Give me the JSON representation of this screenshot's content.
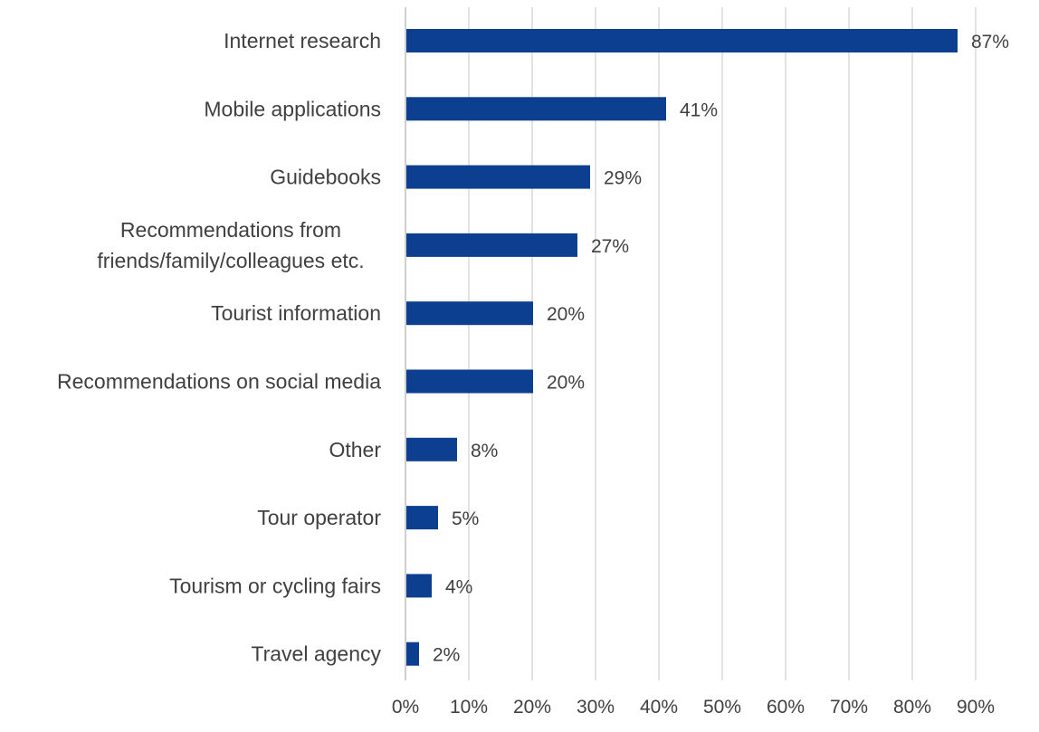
{
  "chart_data": {
    "type": "bar",
    "orientation": "horizontal",
    "categories": [
      "Internet research",
      "Mobile applications",
      "Guidebooks",
      "Recommendations from friends/family/colleagues etc.",
      "Tourist information",
      "Recommendations on social media",
      "Other",
      "Tour operator",
      "Tourism or cycling fairs",
      "Travel agency"
    ],
    "category_lines": [
      [
        "Internet research"
      ],
      [
        "Mobile applications"
      ],
      [
        "Guidebooks"
      ],
      [
        "Recommendations from",
        "friends/family/colleagues etc."
      ],
      [
        "Tourist information"
      ],
      [
        "Recommendations on social media"
      ],
      [
        "Other"
      ],
      [
        "Tour operator"
      ],
      [
        "Tourism or cycling fairs"
      ],
      [
        "Travel agency"
      ]
    ],
    "values": [
      87,
      41,
      29,
      27,
      20,
      20,
      8,
      5,
      4,
      2
    ],
    "value_labels": [
      "87%",
      "41%",
      "29%",
      "27%",
      "20%",
      "20%",
      "8%",
      "5%",
      "4%",
      "2%"
    ],
    "x_ticks": [
      "0%",
      "10%",
      "20%",
      "30%",
      "40%",
      "50%",
      "60%",
      "70%",
      "80%",
      "90%"
    ],
    "xlim": [
      0,
      90
    ],
    "grid": true,
    "legend": "none",
    "title": "",
    "xlabel": "",
    "ylabel": "",
    "bar_color": "#0d3f91",
    "grid_color": "#d9d9d9",
    "text_color": "#404040"
  }
}
